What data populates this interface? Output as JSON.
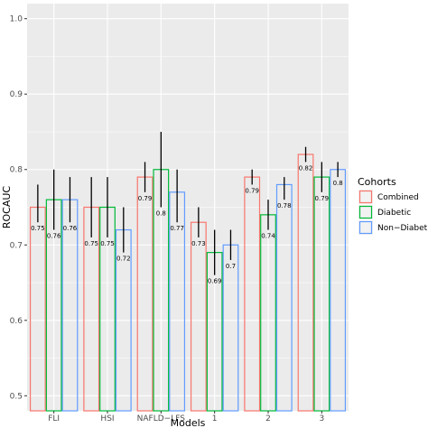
{
  "chart_data": {
    "type": "bar",
    "xlabel": "Models",
    "ylabel": "ROCAUC",
    "ylim": [
      0.48,
      1.02
    ],
    "yticks": [
      "0.5",
      "0.6",
      "0.7",
      "0.8",
      "0.9",
      "1.0"
    ],
    "categories": [
      "FLI",
      "HSI",
      "NAFLD−LFS",
      "1",
      "2",
      "3"
    ],
    "series": [
      {
        "name": "Combined",
        "color": "#F8766D",
        "values": [
          0.75,
          0.75,
          0.79,
          0.73,
          0.79,
          0.82
        ],
        "labels": [
          "0.75",
          "0.75",
          "0.79",
          "0.73",
          "0.79",
          "0.82"
        ],
        "err_low": [
          0.73,
          0.71,
          0.77,
          0.71,
          0.78,
          0.81
        ],
        "err_high": [
          0.78,
          0.79,
          0.81,
          0.75,
          0.8,
          0.83
        ]
      },
      {
        "name": "Diabetic",
        "color": "#00BA38",
        "values": [
          0.76,
          0.75,
          0.8,
          0.69,
          0.74,
          0.79
        ],
        "labels": [
          "0.76",
          "0.75",
          "0.8",
          "0.69",
          "0.74",
          "0.79"
        ],
        "err_low": [
          0.72,
          0.71,
          0.75,
          0.66,
          0.72,
          0.77
        ],
        "err_high": [
          0.8,
          0.79,
          0.85,
          0.72,
          0.76,
          0.81
        ]
      },
      {
        "name": "Non−Diabetic",
        "color": "#619CFF",
        "values": [
          0.76,
          0.72,
          0.77,
          0.7,
          0.78,
          0.8
        ],
        "labels": [
          "0.76",
          "0.72",
          "0.77",
          "0.7",
          "0.78",
          "0.8"
        ],
        "err_low": [
          0.73,
          0.69,
          0.73,
          0.68,
          0.76,
          0.79
        ],
        "err_high": [
          0.79,
          0.75,
          0.8,
          0.72,
          0.79,
          0.81
        ]
      }
    ],
    "legend": {
      "title": "Cohorts",
      "position": "right"
    },
    "grid": true,
    "panel_background": "#EBEBEB",
    "grid_color": "#FFFFFF"
  }
}
